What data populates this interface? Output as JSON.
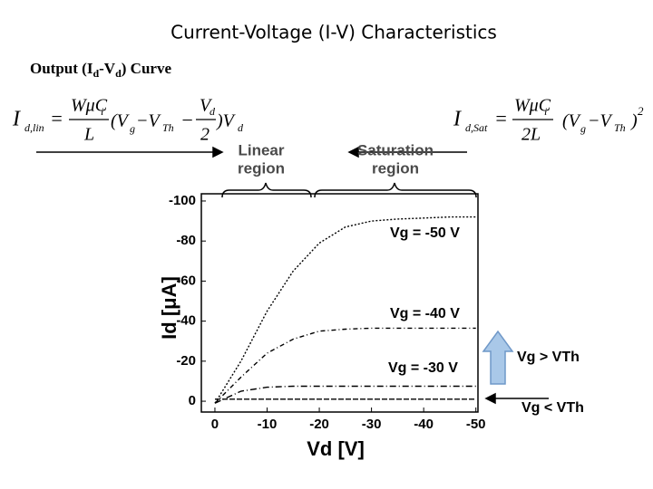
{
  "title": "Current-Voltage (I-V) Characteristics",
  "subtitle": [
    "Output (I",
    "d",
    "-V",
    "d",
    ") Curve"
  ],
  "equations": {
    "linear": [
      "I",
      "d,lin",
      "=",
      "WμC",
      "i",
      "L",
      "(V",
      "g",
      "−V",
      "Th",
      "−",
      "V",
      "d",
      "2",
      ")V",
      "d"
    ],
    "saturation": [
      "I",
      "d,Sat",
      "=",
      "WμC",
      "i",
      "2L",
      "(V",
      "g",
      "−V",
      "Th",
      ")",
      "2"
    ]
  },
  "chart_data": {
    "type": "line",
    "x_label": "Vd [V]",
    "y_label": "Id [μA]",
    "x": [
      0,
      -5,
      -10,
      -15,
      -20,
      -25,
      -30,
      -35,
      -40,
      -45,
      -50
    ],
    "series": [
      {
        "name": "Vg = -50 V",
        "color": "#000000",
        "values": [
          1,
          -20,
          -45,
          -65,
          -79,
          -87,
          -90,
          -91,
          -91.5,
          -92,
          -92
        ]
      },
      {
        "name": "Vg = -40 V",
        "color": "#000000",
        "values": [
          1,
          -12,
          -24,
          -31,
          -35,
          -36,
          -36.5,
          -36.5,
          -36.5,
          -36.5,
          -36.5
        ]
      },
      {
        "name": "Vg = -30 V",
        "color": "#000000",
        "values": [
          1,
          -5,
          -7,
          -7.5,
          -7.5,
          -7.5,
          -7.5,
          -7.5,
          -7.5,
          -7.5,
          -7.5
        ]
      },
      {
        "name": "Vg < VTh",
        "color": "#000000",
        "values": [
          -1,
          -1,
          -1,
          -1,
          -1,
          -1,
          -1,
          -1,
          -1,
          -1,
          -1
        ]
      }
    ],
    "xlim": [
      2.6,
      -50.4
    ],
    "ylim": [
      5.4,
      -103.6
    ],
    "xticks": [
      0,
      -10,
      -20,
      -30,
      -40,
      -50
    ],
    "yticks": [
      0,
      -20,
      -40,
      -60,
      -80,
      -100
    ],
    "annotations": {
      "linear_region": [
        "Linear",
        "region"
      ],
      "saturation_region": [
        "Saturation",
        "region"
      ],
      "above_threshold": "Vg > VTh"
    }
  }
}
